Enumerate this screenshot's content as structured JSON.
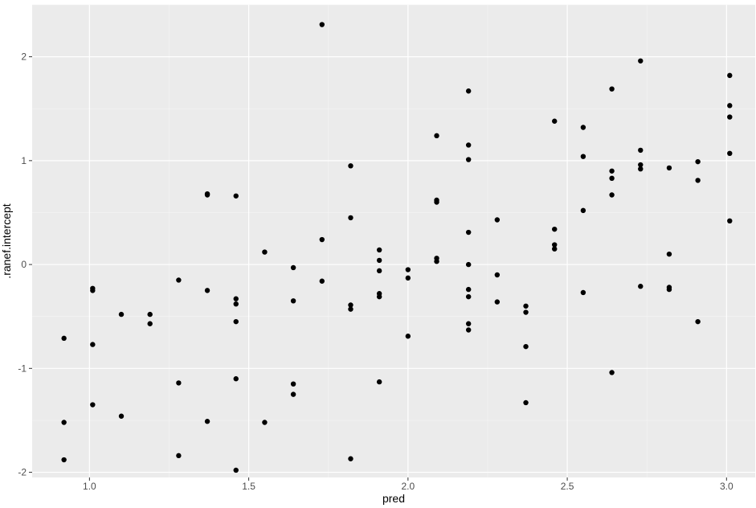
{
  "chart_data": {
    "type": "scatter",
    "title": "",
    "xlabel": "pred",
    "ylabel": ".ranef.intercept",
    "xlim": [
      0.82,
      3.09
    ],
    "ylim": [
      -2.05,
      2.5
    ],
    "x_ticks": [
      1.0,
      1.5,
      2.0,
      2.5,
      3.0
    ],
    "x_tick_labels": [
      "1.0",
      "1.5",
      "2.0",
      "2.5",
      "3.0"
    ],
    "y_ticks": [
      -2,
      -1,
      0,
      1,
      2
    ],
    "y_tick_labels": [
      "-2",
      "-1",
      "0",
      "1",
      "2"
    ],
    "grid": true,
    "legend": "none",
    "colors": {
      "panel_background": "#ebebeb",
      "grid_major": "#ffffff",
      "grid_minor": "#f5f5f5",
      "point": "#000000",
      "tick_label": "#4d4d4d",
      "axis_title": "#000000"
    },
    "points": [
      {
        "x": 0.92,
        "y": -0.71
      },
      {
        "x": 0.92,
        "y": -1.52
      },
      {
        "x": 0.92,
        "y": -1.88
      },
      {
        "x": 1.01,
        "y": -0.23
      },
      {
        "x": 1.01,
        "y": -0.25
      },
      {
        "x": 1.01,
        "y": -0.77
      },
      {
        "x": 1.01,
        "y": -1.35
      },
      {
        "x": 1.1,
        "y": -0.48
      },
      {
        "x": 1.1,
        "y": -1.46
      },
      {
        "x": 1.19,
        "y": -0.48
      },
      {
        "x": 1.19,
        "y": -0.57
      },
      {
        "x": 1.28,
        "y": -0.15
      },
      {
        "x": 1.28,
        "y": -1.14
      },
      {
        "x": 1.28,
        "y": -1.84
      },
      {
        "x": 1.37,
        "y": 0.67
      },
      {
        "x": 1.37,
        "y": 0.68
      },
      {
        "x": 1.37,
        "y": -0.25
      },
      {
        "x": 1.37,
        "y": -1.51
      },
      {
        "x": 1.46,
        "y": 0.66
      },
      {
        "x": 1.46,
        "y": -0.33
      },
      {
        "x": 1.46,
        "y": -0.38
      },
      {
        "x": 1.46,
        "y": -0.55
      },
      {
        "x": 1.46,
        "y": -1.1
      },
      {
        "x": 1.46,
        "y": -1.98
      },
      {
        "x": 1.55,
        "y": 0.12
      },
      {
        "x": 1.55,
        "y": -1.52
      },
      {
        "x": 1.64,
        "y": -0.03
      },
      {
        "x": 1.64,
        "y": -0.35
      },
      {
        "x": 1.64,
        "y": -1.15
      },
      {
        "x": 1.64,
        "y": -1.25
      },
      {
        "x": 1.73,
        "y": 2.31
      },
      {
        "x": 1.73,
        "y": 0.24
      },
      {
        "x": 1.73,
        "y": -0.16
      },
      {
        "x": 1.82,
        "y": 0.95
      },
      {
        "x": 1.82,
        "y": 0.45
      },
      {
        "x": 1.82,
        "y": -0.39
      },
      {
        "x": 1.82,
        "y": -0.43
      },
      {
        "x": 1.82,
        "y": -1.87
      },
      {
        "x": 1.91,
        "y": 0.14
      },
      {
        "x": 1.91,
        "y": 0.04
      },
      {
        "x": 1.91,
        "y": -0.06
      },
      {
        "x": 1.91,
        "y": -0.28
      },
      {
        "x": 1.91,
        "y": -0.31
      },
      {
        "x": 1.91,
        "y": -1.13
      },
      {
        "x": 2.0,
        "y": -0.05
      },
      {
        "x": 2.0,
        "y": -0.13
      },
      {
        "x": 2.0,
        "y": -0.69
      },
      {
        "x": 2.09,
        "y": 1.24
      },
      {
        "x": 2.09,
        "y": 0.62
      },
      {
        "x": 2.09,
        "y": 0.6
      },
      {
        "x": 2.09,
        "y": 0.06
      },
      {
        "x": 2.09,
        "y": 0.03
      },
      {
        "x": 2.19,
        "y": 1.67
      },
      {
        "x": 2.19,
        "y": 1.15
      },
      {
        "x": 2.19,
        "y": 1.01
      },
      {
        "x": 2.19,
        "y": 0.31
      },
      {
        "x": 2.19,
        "y": 0.0
      },
      {
        "x": 2.19,
        "y": -0.24
      },
      {
        "x": 2.19,
        "y": -0.31
      },
      {
        "x": 2.19,
        "y": -0.57
      },
      {
        "x": 2.19,
        "y": -0.63
      },
      {
        "x": 2.28,
        "y": 0.43
      },
      {
        "x": 2.28,
        "y": -0.1
      },
      {
        "x": 2.28,
        "y": -0.36
      },
      {
        "x": 2.37,
        "y": -0.4
      },
      {
        "x": 2.37,
        "y": -0.46
      },
      {
        "x": 2.37,
        "y": -0.79
      },
      {
        "x": 2.37,
        "y": -1.33
      },
      {
        "x": 2.46,
        "y": 1.38
      },
      {
        "x": 2.46,
        "y": 0.34
      },
      {
        "x": 2.46,
        "y": 0.19
      },
      {
        "x": 2.46,
        "y": 0.15
      },
      {
        "x": 2.55,
        "y": 1.32
      },
      {
        "x": 2.55,
        "y": 1.04
      },
      {
        "x": 2.55,
        "y": 0.52
      },
      {
        "x": 2.55,
        "y": -0.27
      },
      {
        "x": 2.64,
        "y": 1.69
      },
      {
        "x": 2.64,
        "y": 0.9
      },
      {
        "x": 2.64,
        "y": 0.83
      },
      {
        "x": 2.64,
        "y": 0.67
      },
      {
        "x": 2.64,
        "y": -1.04
      },
      {
        "x": 2.73,
        "y": 1.96
      },
      {
        "x": 2.73,
        "y": 1.1
      },
      {
        "x": 2.73,
        "y": 0.96
      },
      {
        "x": 2.73,
        "y": 0.92
      },
      {
        "x": 2.73,
        "y": -0.21
      },
      {
        "x": 2.82,
        "y": 0.93
      },
      {
        "x": 2.82,
        "y": 0.1
      },
      {
        "x": 2.82,
        "y": -0.22
      },
      {
        "x": 2.82,
        "y": -0.24
      },
      {
        "x": 2.91,
        "y": 0.99
      },
      {
        "x": 2.91,
        "y": 0.81
      },
      {
        "x": 2.91,
        "y": -0.55
      },
      {
        "x": 3.01,
        "y": 1.82
      },
      {
        "x": 3.01,
        "y": 1.53
      },
      {
        "x": 3.01,
        "y": 1.42
      },
      {
        "x": 3.01,
        "y": 1.07
      },
      {
        "x": 3.01,
        "y": 0.42
      }
    ]
  }
}
